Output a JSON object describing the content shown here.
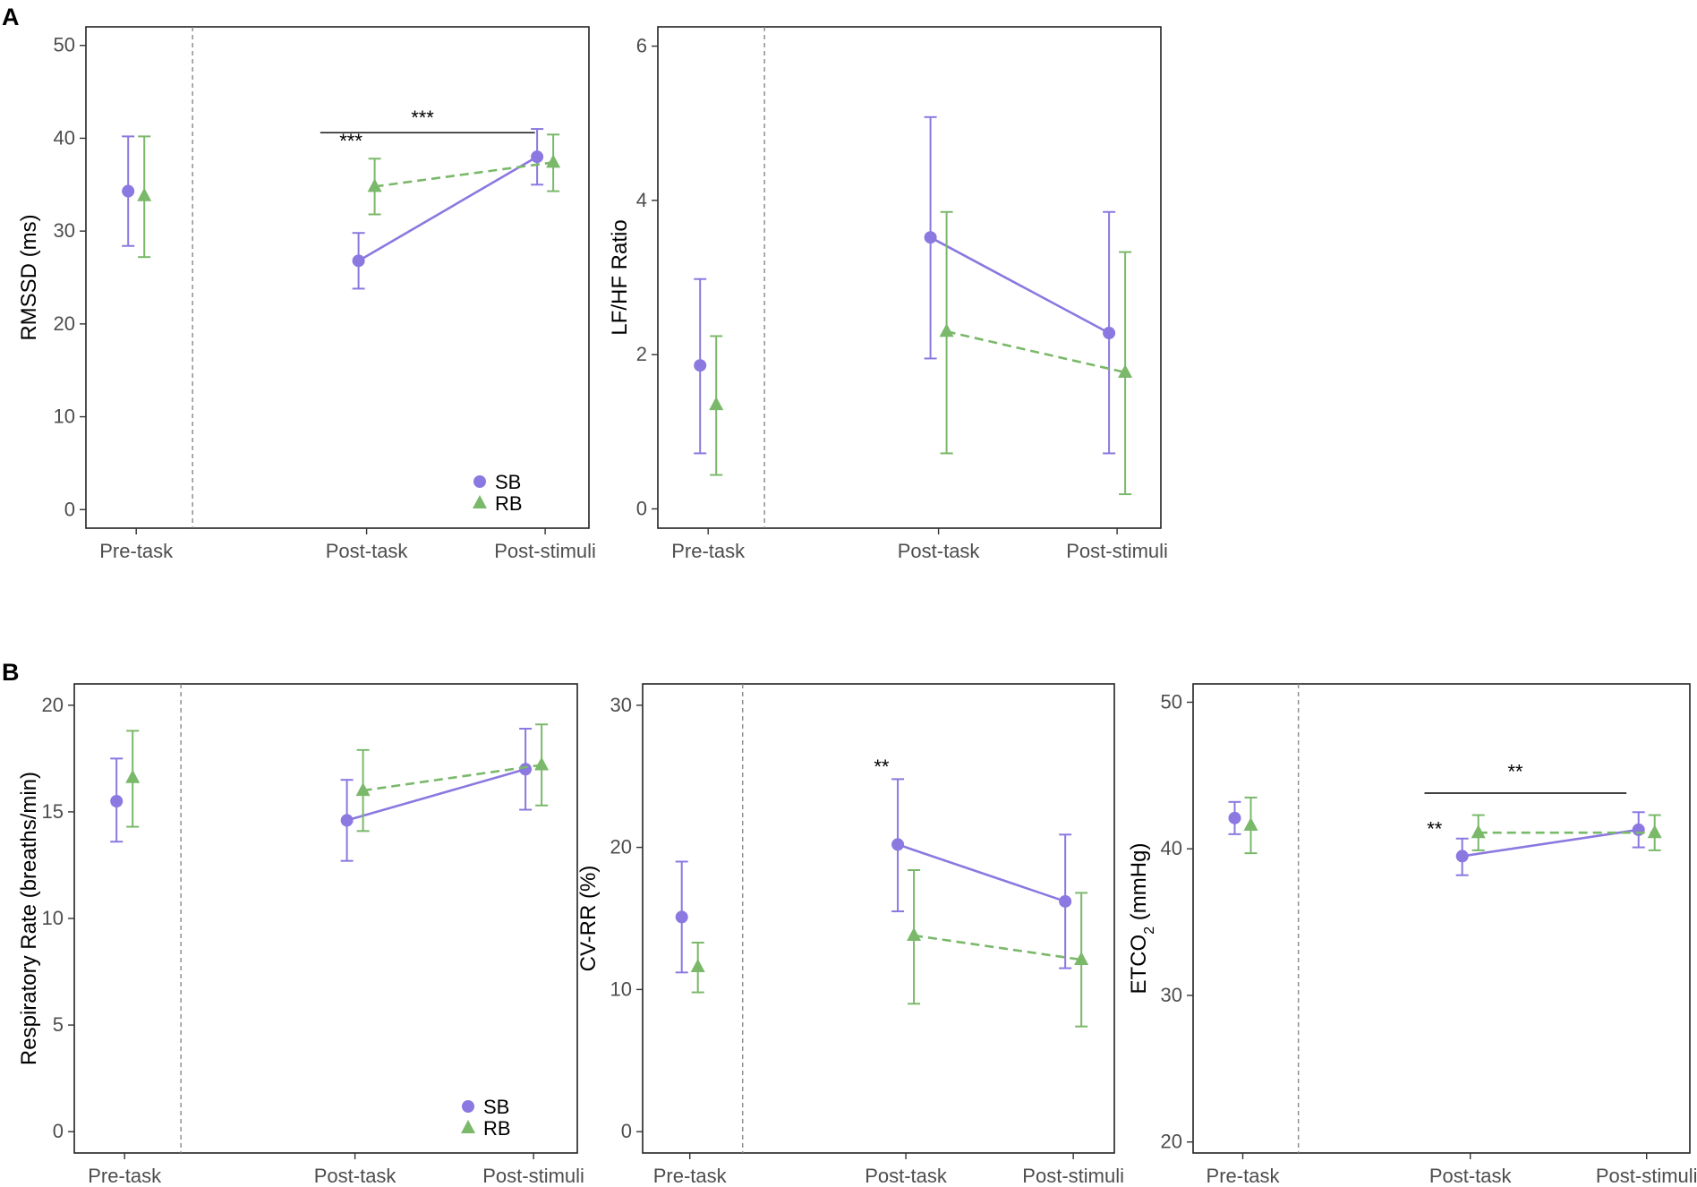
{
  "figure": {
    "panel_labels": [
      "A",
      "B"
    ]
  },
  "colors": {
    "SB": "#8b78e0",
    "RB": "#7ab86a"
  },
  "chart_data": [
    {
      "id": "rmssd",
      "type": "line",
      "panel": "A",
      "title": "",
      "ylabel": "RMSSD (ms)",
      "ylabel_sub": "",
      "ylabel_after": "",
      "ylim": [
        -2,
        52
      ],
      "yticks": [
        0,
        10,
        20,
        30,
        40,
        50
      ],
      "categories": [
        "Pre-task",
        "Post-task",
        "Post-stimuli"
      ],
      "series": [
        {
          "name": "SB",
          "values": [
            34.3,
            26.8,
            38.0
          ],
          "lower": [
            28.4,
            23.8,
            35.0
          ],
          "upper": [
            40.2,
            29.8,
            41.0
          ]
        },
        {
          "name": "RB",
          "values": [
            33.8,
            34.8,
            37.4
          ],
          "lower": [
            27.2,
            31.8,
            34.3
          ],
          "upper": [
            40.2,
            37.8,
            40.4
          ]
        }
      ],
      "legend": true,
      "annotations": [
        {
          "text": "***",
          "x": 1.05,
          "y": 39.0
        },
        {
          "text": "***",
          "x": 1.4,
          "y": 41.5,
          "bracket": [
            0.9,
            1.95,
            40.6
          ]
        }
      ]
    },
    {
      "id": "lfhf",
      "type": "line",
      "panel": "A",
      "title": "",
      "ylabel": "LF/HF Ratio",
      "ylabel_sub": "",
      "ylabel_after": "",
      "ylim": [
        -0.25,
        6.25
      ],
      "yticks": [
        0,
        2,
        4,
        6
      ],
      "categories": [
        "Pre-task",
        "Post-task",
        "Post-stimuli"
      ],
      "series": [
        {
          "name": "SB",
          "values": [
            1.86,
            3.52,
            2.28
          ],
          "lower": [
            0.72,
            1.95,
            0.72
          ],
          "upper": [
            2.98,
            5.08,
            3.85
          ]
        },
        {
          "name": "RB",
          "values": [
            1.35,
            2.3,
            1.77
          ],
          "lower": [
            0.44,
            0.72,
            0.19
          ],
          "upper": [
            2.24,
            3.85,
            3.33
          ]
        }
      ],
      "legend": false,
      "annotations": []
    },
    {
      "id": "resp",
      "type": "line",
      "panel": "B",
      "title": "",
      "ylabel": "Respiratory Rate (breaths/min)",
      "ylabel_sub": "",
      "ylabel_after": "",
      "ylim": [
        -1,
        21
      ],
      "yticks": [
        0,
        5,
        10,
        15,
        20
      ],
      "categories": [
        "Pre-task",
        "Post-task",
        "Post-stimuli"
      ],
      "series": [
        {
          "name": "SB",
          "values": [
            15.5,
            14.6,
            17.0
          ],
          "lower": [
            13.6,
            12.7,
            15.1
          ],
          "upper": [
            17.5,
            16.5,
            18.9
          ]
        },
        {
          "name": "RB",
          "values": [
            16.6,
            16.0,
            17.2
          ],
          "lower": [
            14.3,
            14.1,
            15.3
          ],
          "upper": [
            18.8,
            17.9,
            19.1
          ]
        }
      ],
      "legend": true,
      "annotations": []
    },
    {
      "id": "cvrr",
      "type": "line",
      "panel": "B",
      "title": "",
      "ylabel": "CV-RR (%)",
      "ylabel_sub": "",
      "ylabel_after": "",
      "ylim": [
        -1.5,
        31.5
      ],
      "yticks": [
        0,
        10,
        20,
        30
      ],
      "categories": [
        "Pre-task",
        "Post-task",
        "Post-stimuli"
      ],
      "series": [
        {
          "name": "SB",
          "values": [
            15.1,
            20.2,
            16.2
          ],
          "lower": [
            11.2,
            15.5,
            11.5
          ],
          "upper": [
            19.0,
            24.8,
            20.9
          ]
        },
        {
          "name": "RB",
          "values": [
            11.6,
            13.8,
            12.1
          ],
          "lower": [
            9.8,
            9.0,
            7.4
          ],
          "upper": [
            13.3,
            18.4,
            16.8
          ]
        }
      ],
      "legend": false,
      "annotations": [
        {
          "text": "**",
          "x": 1.0,
          "y": 25.2
        }
      ]
    },
    {
      "id": "etco2",
      "type": "line",
      "panel": "B",
      "title": "",
      "ylabel": "ETCO",
      "ylabel_sub": "2",
      "ylabel_after": " (mmHg)",
      "ylim": [
        19.25,
        51.25
      ],
      "yticks": [
        20,
        30,
        40,
        50
      ],
      "categories": [
        "Pre-task",
        "Post-task",
        "Post-stimuli"
      ],
      "series": [
        {
          "name": "SB",
          "values": [
            42.1,
            39.5,
            41.3
          ],
          "lower": [
            41.0,
            38.2,
            40.1
          ],
          "upper": [
            43.2,
            40.7,
            42.5
          ]
        },
        {
          "name": "RB",
          "values": [
            41.6,
            41.1,
            41.1
          ],
          "lower": [
            39.7,
            39.9,
            39.9
          ],
          "upper": [
            43.5,
            42.3,
            42.3
          ]
        }
      ],
      "legend": false,
      "annotations": [
        {
          "text": "**",
          "x": 0.95,
          "y": 40.9
        },
        {
          "text": "**",
          "x": 1.35,
          "y": 44.8,
          "bracket": [
            0.9,
            1.9,
            43.8
          ]
        }
      ]
    }
  ],
  "legend": {
    "items": [
      "SB",
      "RB"
    ]
  }
}
